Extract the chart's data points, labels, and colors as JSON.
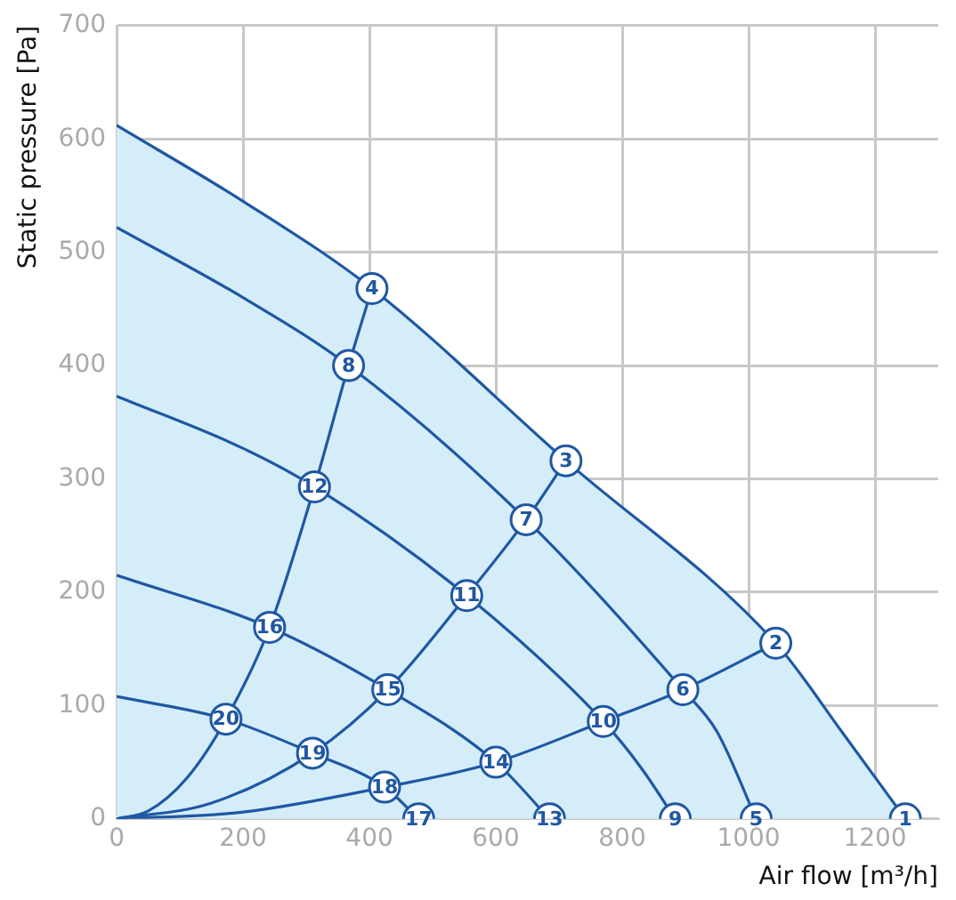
{
  "chart_data": {
    "type": "line",
    "xlabel": "Air flow [m³/h]",
    "ylabel": "Static pressure [Pa]",
    "xlim": [
      0,
      1300
    ],
    "ylim": [
      0,
      700
    ],
    "xticks": [
      0,
      200,
      400,
      600,
      800,
      1000,
      1200
    ],
    "yticks": [
      0,
      100,
      200,
      300,
      400,
      500,
      600,
      700
    ],
    "grid": true,
    "series": [
      {
        "type": "area",
        "color": "#1f58a3",
        "x": [
          0,
          200,
          404,
          711,
          1043,
          1150,
          1248
        ],
        "values": [
          612,
          545,
          468,
          316,
          155,
          75,
          0
        ]
      },
      {
        "color": "#1f58a3",
        "x": [
          0,
          200,
          367,
          648,
          896,
          950,
          1012
        ],
        "values": [
          522,
          460,
          400,
          264,
          114,
          77,
          0
        ]
      },
      {
        "color": "#1f58a3",
        "x": [
          0,
          200,
          313,
          554,
          770,
          830,
          884
        ],
        "values": [
          373,
          327,
          293,
          197,
          86,
          45,
          0
        ]
      },
      {
        "color": "#1f58a3",
        "x": [
          0,
          242,
          429,
          600,
          685
        ],
        "values": [
          215,
          169,
          114,
          50,
          0
        ]
      },
      {
        "color": "#1f58a3",
        "x": [
          0,
          173,
          310,
          424,
          478
        ],
        "values": [
          108,
          88,
          58,
          28,
          0
        ]
      },
      {
        "color": "#1f58a3",
        "x": [
          0,
          50,
          111,
          173,
          242,
          313,
          367,
          404
        ],
        "values": [
          0,
          7,
          36,
          88,
          169,
          293,
          400,
          468
        ]
      },
      {
        "color": "#1f58a3",
        "x": [
          0,
          150,
          310,
          429,
          554,
          648,
          711
        ],
        "values": [
          0,
          14,
          58,
          114,
          197,
          264,
          316
        ]
      },
      {
        "color": "#1f58a3",
        "x": [
          0,
          200,
          424,
          600,
          770,
          896,
          1043
        ],
        "values": [
          0,
          6,
          28,
          50,
          86,
          114,
          155
        ]
      },
      {
        "type": "scatter",
        "color": "#1f58a3",
        "marker": "circle",
        "x": [
          1248,
          1043,
          711,
          404,
          1012,
          896,
          648,
          367,
          884,
          770,
          554,
          313,
          685,
          600,
          429,
          242,
          478,
          424,
          310,
          173
        ],
        "values": [
          0,
          155,
          316,
          468,
          0,
          114,
          264,
          400,
          0,
          86,
          197,
          293,
          0,
          50,
          114,
          169,
          0,
          28,
          58,
          88
        ]
      }
    ],
    "annotations": [
      {
        "text": "1",
        "x": 1248,
        "y": 0
      },
      {
        "text": "2",
        "x": 1043,
        "y": 155
      },
      {
        "text": "3",
        "x": 711,
        "y": 316
      },
      {
        "text": "4",
        "x": 404,
        "y": 468
      },
      {
        "text": "5",
        "x": 1012,
        "y": 0
      },
      {
        "text": "6",
        "x": 896,
        "y": 114
      },
      {
        "text": "7",
        "x": 648,
        "y": 264
      },
      {
        "text": "8",
        "x": 367,
        "y": 400
      },
      {
        "text": "9",
        "x": 884,
        "y": 0
      },
      {
        "text": "10",
        "x": 770,
        "y": 86
      },
      {
        "text": "11",
        "x": 554,
        "y": 197
      },
      {
        "text": "12",
        "x": 313,
        "y": 293
      },
      {
        "text": "13",
        "x": 685,
        "y": 0
      },
      {
        "text": "14",
        "x": 600,
        "y": 50
      },
      {
        "text": "15",
        "x": 429,
        "y": 114
      },
      {
        "text": "16",
        "x": 242,
        "y": 169
      },
      {
        "text": "17",
        "x": 478,
        "y": 0
      },
      {
        "text": "18",
        "x": 424,
        "y": 28
      },
      {
        "text": "19",
        "x": 310,
        "y": 58
      },
      {
        "text": "20",
        "x": 173,
        "y": 88
      }
    ]
  }
}
